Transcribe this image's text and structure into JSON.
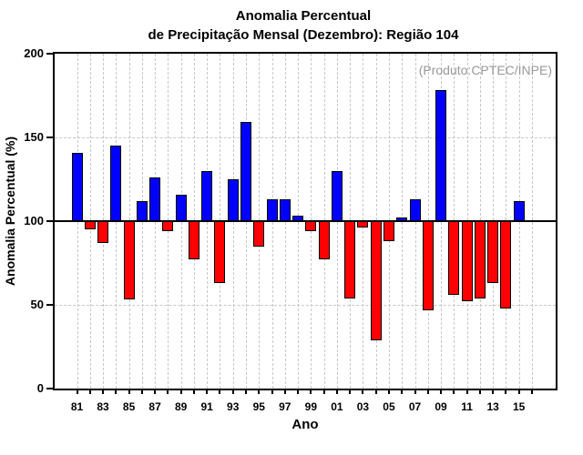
{
  "title": {
    "line1": "Anomalia Percentual",
    "line2": "de Precipitação Mensal (Dezembro): Região 104"
  },
  "annotation": "(Produto:CPTEC/INPE)",
  "axes": {
    "ylabel": "Anomalia Percentual (%)",
    "xlabel": "Ano",
    "y_ticks": [
      0,
      50,
      100,
      150,
      200
    ],
    "x_tick_labels": [
      "81",
      "83",
      "85",
      "87",
      "89",
      "91",
      "93",
      "95",
      "97",
      "99",
      "01",
      "03",
      "05",
      "07",
      "09",
      "11",
      "13",
      "15"
    ]
  },
  "colors": {
    "above_baseline": "#0000ff",
    "below_baseline": "#ff0000",
    "gridline": "#c8c8c8",
    "annotation_text": "#999999",
    "frame": "#000000"
  },
  "chart_data": {
    "type": "bar",
    "title": "Anomalia Percentual de Precipitação Mensal (Dezembro): Região 104",
    "xlabel": "Ano",
    "ylabel": "Anomalia Percentual (%)",
    "ylim": [
      0,
      200
    ],
    "baseline": 100,
    "grid": true,
    "legend": "none",
    "categories": [
      1981,
      1982,
      1983,
      1984,
      1985,
      1986,
      1987,
      1988,
      1989,
      1990,
      1991,
      1992,
      1993,
      1994,
      1995,
      1996,
      1997,
      1998,
      1999,
      2000,
      2001,
      2002,
      2003,
      2004,
      2005,
      2006,
      2007,
      2008,
      2009,
      2010,
      2011,
      2012,
      2013,
      2014,
      2015
    ],
    "values": [
      141,
      95,
      87,
      145,
      53,
      112,
      126,
      94,
      116,
      77,
      130,
      63,
      125,
      159,
      85,
      113,
      113,
      103,
      94,
      77,
      130,
      54,
      96,
      29,
      88,
      102,
      113,
      47,
      178,
      56,
      52,
      54,
      63,
      48,
      112
    ],
    "color_rule": "value >= 100 blue (#0000ff), value < 100 red (#ff0000)"
  }
}
